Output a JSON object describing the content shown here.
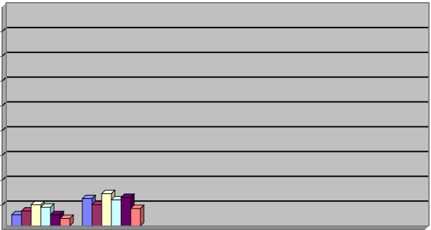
{
  "chart_data": {
    "type": "bar",
    "style": "3d-clustered-column",
    "grid": true,
    "legend": "none",
    "ylim": [
      0,
      9
    ],
    "gridline_count": 9,
    "categories": [
      "",
      ""
    ],
    "series": [
      {
        "color": "#8080ff",
        "values": [
          0.45,
          1.1
        ]
      },
      {
        "color": "#993366",
        "values": [
          0.6,
          0.85
        ]
      },
      {
        "color": "#ffffcc",
        "values": [
          0.85,
          1.3
        ]
      },
      {
        "color": "#ccffff",
        "values": [
          0.75,
          1.05
        ]
      },
      {
        "color": "#660066",
        "values": [
          0.45,
          1.15
        ]
      },
      {
        "color": "#ff8080",
        "values": [
          0.3,
          0.7
        ]
      }
    ],
    "colors": {
      "plot_background": "#c0c0c0",
      "gridline": "#000000",
      "frame": "#808080"
    }
  }
}
